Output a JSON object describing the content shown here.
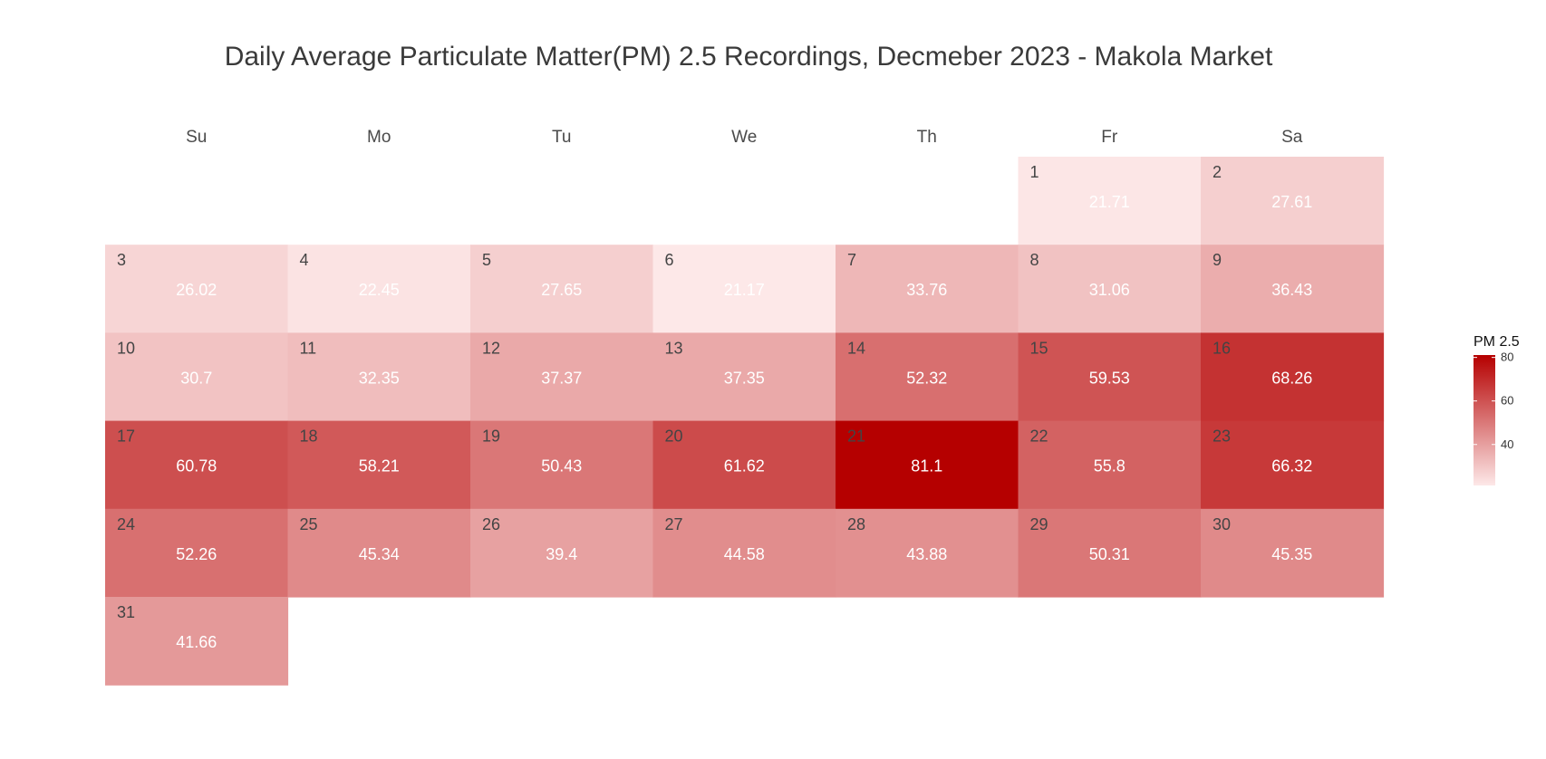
{
  "chart_data": {
    "type": "heatmap",
    "title": "Daily Average Particulate Matter(PM) 2.5 Recordings, Decmeber 2023 - Makola Market",
    "weekdays": [
      "Su",
      "Mo",
      "Tu",
      "We",
      "Th",
      "Fr",
      "Sa"
    ],
    "first_weekday_index": 5,
    "days": [
      1,
      2,
      3,
      4,
      5,
      6,
      7,
      8,
      9,
      10,
      11,
      12,
      13,
      14,
      15,
      16,
      17,
      18,
      19,
      20,
      21,
      22,
      23,
      24,
      25,
      26,
      27,
      28,
      29,
      30,
      31
    ],
    "values": [
      21.71,
      27.61,
      26.02,
      22.45,
      27.65,
      21.17,
      33.76,
      31.06,
      36.43,
      30.7,
      32.35,
      37.37,
      37.35,
      52.32,
      59.53,
      68.26,
      60.78,
      58.21,
      50.43,
      61.62,
      81.1,
      55.8,
      66.32,
      52.26,
      45.34,
      39.4,
      44.58,
      43.88,
      50.31,
      45.35,
      41.66
    ],
    "legend": {
      "title": "PM 2.5",
      "ticks": [
        40,
        60,
        80
      ],
      "range": [
        21.17,
        81.1
      ],
      "low_color": "#fde8e8",
      "high_color": "#b50000"
    }
  }
}
